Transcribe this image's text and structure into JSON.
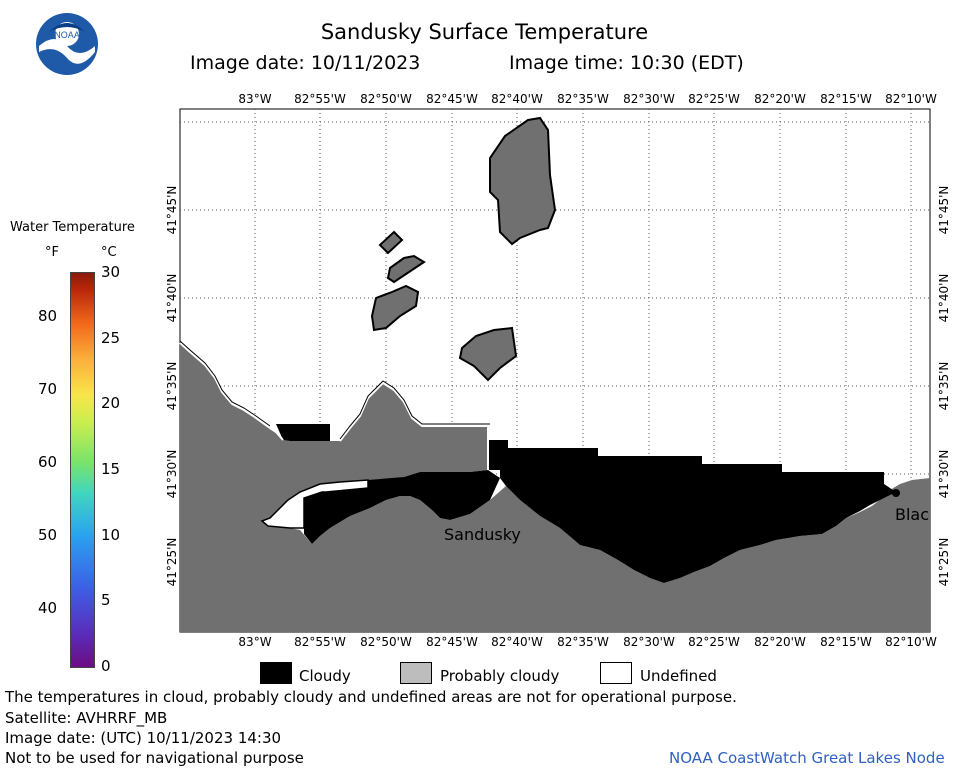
{
  "title": "Sandusky Surface Temperature",
  "image_date_label": "Image date: 10/11/2023",
  "image_time_label": "Image time: 10:30 (EDT)",
  "logo_text": "NOAA",
  "colorbar": {
    "title": "Water Temperature",
    "unit_f": "°F",
    "unit_c": "°C",
    "f_ticks": [
      "80",
      "70",
      "60",
      "50",
      "40"
    ],
    "c_ticks": [
      "30",
      "25",
      "20",
      "15",
      "10",
      "5",
      "0"
    ],
    "c_range": [
      0,
      30
    ],
    "f_range_shown": [
      32,
      86
    ]
  },
  "longitude_labels": [
    "83°W",
    "82°55'W",
    "82°50'W",
    "82°45'W",
    "82°40'W",
    "82°35'W",
    "82°30'W",
    "82°25'W",
    "82°20'W",
    "82°15'W",
    "82°10'W"
  ],
  "latitude_labels": [
    "41°45'N",
    "41°40'N",
    "41°35'N",
    "41°30'N",
    "41°25'N"
  ],
  "place_labels": [
    "Sandusky",
    "Blac"
  ],
  "legend": {
    "cloudy": "Cloudy",
    "probably_cloudy": "Probably cloudy",
    "undefined": "Undefined"
  },
  "legend_colors": {
    "cloudy": "#000000",
    "probably_cloudy": "#bdbdbd",
    "undefined": "#ffffff",
    "land": "#707070"
  },
  "footer": {
    "disclaimer": "The temperatures in cloud, probably cloudy and undefined areas are not for operational purpose.",
    "satellite": "Satellite: AVHRRF_MB",
    "utc_date": "Image date: (UTC) 10/11/2023  14:30",
    "nav_warning": "Not to be used for navigational purpose",
    "credit": "NOAA CoastWatch Great Lakes Node"
  },
  "credit_color": "#3060c0"
}
